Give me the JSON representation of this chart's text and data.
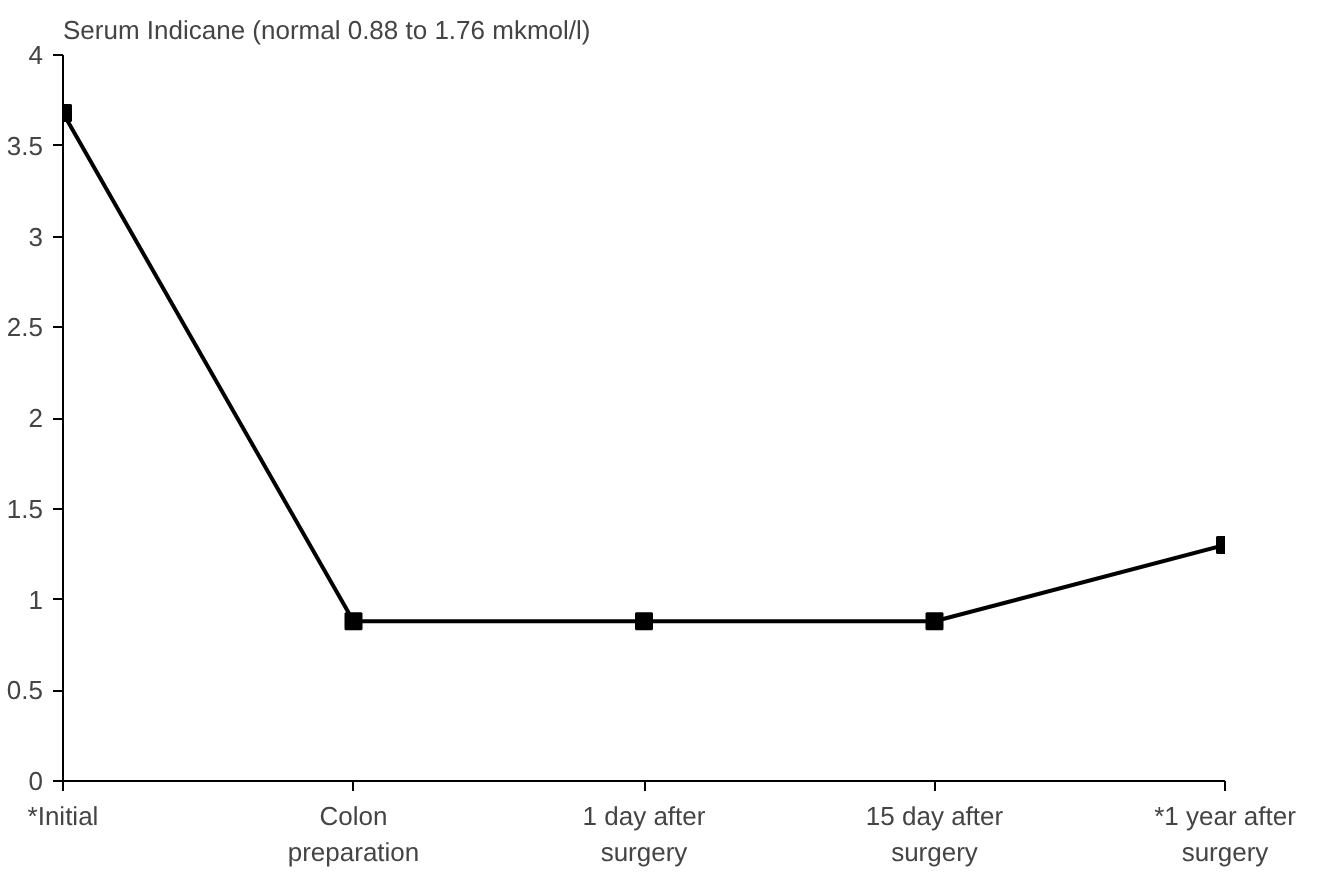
{
  "chart_data": {
    "type": "line",
    "title": "Serum Indicane (normal 0.88 to 1.76 mkmol/l)",
    "categories": [
      "*Initial",
      "Colon preparation",
      "1 day after surgery",
      "15 day after surgery",
      "*1 year after surgery"
    ],
    "series": [
      {
        "color": "#000000",
        "values": [
          3.68,
          0.88,
          0.88,
          0.88,
          1.3
        ]
      }
    ],
    "ylim": [
      0,
      4
    ],
    "yticks": [
      0,
      0.5,
      1,
      1.5,
      2,
      2.5,
      3,
      3.5,
      4
    ],
    "grid": false,
    "marker": "square",
    "line_style": "solid"
  }
}
